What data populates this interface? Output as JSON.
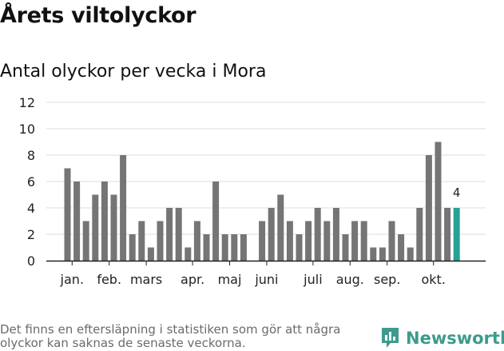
{
  "title": "Årets viltolyckor",
  "subtitle": "Antal olyckor per vecka i Mora",
  "footnote": "Det finns en eftersläpning i statistiken som gör att några olyckor kan saknas de senaste veckorna.",
  "brand": "Newsworthy",
  "icon": "newsworthy-logo-icon",
  "colors": {
    "bar": "#757575",
    "highlight": "#27a195",
    "grid": "#dddddd",
    "brand": "#3c9b8e"
  },
  "chart_data": {
    "type": "bar",
    "ylim": [
      0,
      12
    ],
    "yticks": [
      0,
      2,
      4,
      6,
      8,
      10,
      12
    ],
    "grid": "horizontal",
    "values": [
      7,
      6,
      3,
      5,
      6,
      5,
      8,
      2,
      3,
      1,
      3,
      4,
      4,
      1,
      3,
      2,
      6,
      2,
      2,
      2,
      0,
      3,
      4,
      5,
      3,
      2,
      3,
      4,
      3,
      4,
      2,
      3,
      3,
      1,
      1,
      3,
      2,
      1,
      4,
      8,
      9,
      4,
      4
    ],
    "highlight_index": 42,
    "data_label": "4",
    "month_labels": [
      {
        "label": "jan.",
        "week": 0.5
      },
      {
        "label": "feb.",
        "week": 4.5
      },
      {
        "label": "mars",
        "week": 8.5
      },
      {
        "label": "apr.",
        "week": 13.5
      },
      {
        "label": "maj",
        "week": 17.5
      },
      {
        "label": "juni",
        "week": 21.5
      },
      {
        "label": "juli",
        "week": 26.5
      },
      {
        "label": "aug.",
        "week": 30.5
      },
      {
        "label": "sep.",
        "week": 34.5
      },
      {
        "label": "okt.",
        "week": 39.5
      }
    ]
  }
}
